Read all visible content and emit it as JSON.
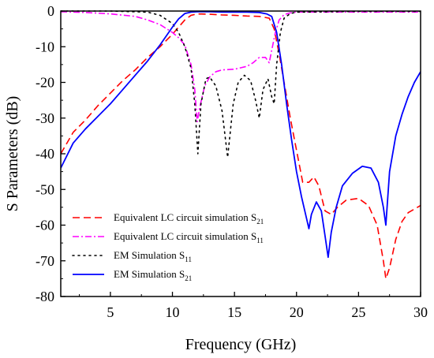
{
  "chart_data": {
    "type": "line",
    "title": "",
    "xlabel": "Frequency (GHz)",
    "ylabel": "S Parameters (dB)",
    "xlim": [
      1,
      30
    ],
    "ylim": [
      -80,
      0
    ],
    "xticks": [
      5,
      10,
      15,
      20,
      25,
      30
    ],
    "yticks": [
      0,
      -10,
      -20,
      -30,
      -40,
      -50,
      -60,
      -70,
      -80
    ],
    "xtick_labels": [
      "5",
      "10",
      "15",
      "20",
      "25",
      "30"
    ],
    "ytick_labels": [
      "0",
      "-10",
      "-20",
      "-30",
      "-40",
      "-50",
      "-60",
      "-70",
      "-80"
    ],
    "grid": false,
    "legend_position": "bottom-left",
    "series": [
      {
        "name": "Equivalent LC circuit simulation S21",
        "label_main": "Equivalent LC circuit simulation S",
        "label_sub": "21",
        "color": "#ff0000",
        "style": "dashed",
        "x": [
          1,
          2,
          3,
          4,
          5,
          6,
          7,
          8,
          9,
          10,
          10.5,
          11,
          11.5,
          12,
          13,
          14,
          15,
          16,
          17,
          17.8,
          18.2,
          18.6,
          19,
          19.5,
          20,
          20.5,
          21,
          21.4,
          21.8,
          22.3,
          22.8,
          23.3,
          24,
          25,
          25.8,
          26.5,
          27,
          27.2,
          27.5,
          28,
          28.5,
          29,
          30
        ],
        "y": [
          -40,
          -34,
          -30.5,
          -26.5,
          -23,
          -19.5,
          -16.5,
          -13,
          -10,
          -6.5,
          -4.5,
          -2.5,
          -1.2,
          -0.8,
          -0.9,
          -1.1,
          -1.2,
          -1.4,
          -1.5,
          -2,
          -5,
          -12,
          -20,
          -30,
          -39,
          -48,
          -48,
          -46.5,
          -49,
          -56,
          -57,
          -55,
          -53,
          -52.5,
          -54.5,
          -60,
          -70,
          -75,
          -72,
          -64,
          -59,
          -56.5,
          -54.5
        ]
      },
      {
        "name": "Equivalent LC circuit simulation S11",
        "label_main": "Equivalent LC circuit simulation S",
        "label_sub": "11",
        "color": "#ff00ff",
        "style": "dashdot",
        "x": [
          1,
          3,
          5,
          7,
          8,
          9,
          10,
          10.5,
          11,
          11.5,
          11.8,
          12,
          12.2,
          12.6,
          13,
          13.5,
          14,
          15,
          16,
          16.5,
          17,
          17.5,
          17.8,
          18,
          18.3,
          18.6,
          19,
          19.5,
          20,
          22,
          25,
          28,
          30
        ],
        "y": [
          -0.2,
          -0.4,
          -0.8,
          -1.5,
          -2.5,
          -3.8,
          -6,
          -7.5,
          -9.5,
          -15,
          -22,
          -31,
          -27,
          -21,
          -18.5,
          -17,
          -16.5,
          -16.3,
          -15.5,
          -14.5,
          -13,
          -13,
          -14.5,
          -11,
          -6,
          -2.5,
          -1,
          -0.5,
          -0.3,
          -0.3,
          -0.3,
          -0.3,
          -0.3
        ]
      },
      {
        "name": "EM Simulation S11",
        "label_main": "EM Simulation S",
        "label_sub": "11",
        "color": "#000000",
        "style": "dotted",
        "x": [
          1,
          5,
          8,
          9,
          10,
          10.5,
          11,
          11.5,
          11.8,
          12.05,
          12.3,
          12.7,
          13,
          13.5,
          14,
          14.45,
          14.9,
          15.3,
          15.8,
          16.3,
          16.7,
          17,
          17.3,
          17.7,
          18,
          18.2,
          18.4,
          18.7,
          19,
          19.5,
          20,
          25,
          30
        ],
        "y": [
          0,
          0,
          -0.3,
          -1.2,
          -3.5,
          -6,
          -10,
          -16,
          -26,
          -40,
          -26,
          -19,
          -18.5,
          -21,
          -28,
          -41,
          -26,
          -20,
          -18,
          -19.5,
          -25,
          -30,
          -22,
          -19,
          -24,
          -26,
          -15,
          -6,
          -2,
          -0.7,
          -0.3,
          -0.1,
          -0.1
        ]
      },
      {
        "name": "EM Simulation S21",
        "label_main": "EM Simulation S",
        "label_sub": "21",
        "color": "#0000ff",
        "style": "solid",
        "x": [
          1,
          2,
          3,
          4,
          5,
          6,
          7,
          8,
          9,
          10,
          10.5,
          11,
          11.5,
          12,
          13,
          14,
          15,
          16,
          17,
          17.6,
          18,
          18.4,
          18.8,
          19.2,
          19.6,
          20,
          20.4,
          20.8,
          21,
          21.2,
          21.6,
          22,
          22.3,
          22.55,
          22.8,
          23.2,
          23.7,
          24.5,
          25.3,
          26,
          26.6,
          27,
          27.2,
          27.5,
          28,
          28.5,
          29,
          29.5,
          30
        ],
        "y": [
          -44,
          -37,
          -33,
          -29.5,
          -26,
          -22,
          -18,
          -14,
          -9.5,
          -4.5,
          -2.2,
          -0.7,
          -0.3,
          -0.2,
          -0.2,
          -0.3,
          -0.3,
          -0.3,
          -0.4,
          -0.8,
          -1.5,
          -6,
          -15,
          -26,
          -36,
          -45,
          -52,
          -58,
          -61,
          -57,
          -53.5,
          -56,
          -63,
          -69,
          -62,
          -55,
          -49,
          -45.5,
          -43.5,
          -44,
          -48,
          -55,
          -60,
          -45,
          -35,
          -29,
          -24,
          -20,
          -17
        ]
      }
    ]
  }
}
